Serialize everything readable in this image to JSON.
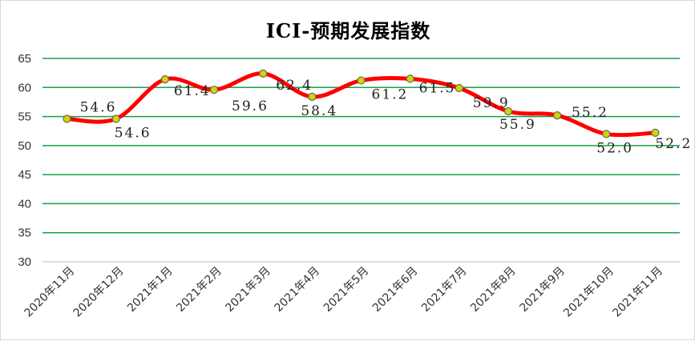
{
  "chart_data": {
    "type": "line",
    "title": "ICI-预期发展指数",
    "categories": [
      "2020年11月",
      "2020年12月",
      "2021年1月",
      "2021年2月",
      "2021年3月",
      "2021年4月",
      "2021年5月",
      "2021年6月",
      "2021年7月",
      "2021年8月",
      "2021年9月",
      "2021年10月",
      "2021年11月"
    ],
    "series": [
      {
        "values": [
          54.6,
          54.6,
          61.4,
          59.6,
          62.4,
          58.4,
          61.2,
          61.5,
          59.9,
          55.9,
          55.2,
          52.0,
          52.2
        ]
      }
    ],
    "data_labels": [
      "54.6",
      "54.6",
      "61.4",
      "59.6",
      "62.4",
      "58.4",
      "61.2",
      "61.5",
      "59.9",
      "55.9",
      "55.2",
      "52.0",
      "52.2"
    ],
    "ylim": [
      30,
      65
    ],
    "yticks": [
      "30",
      "35",
      "40",
      "45",
      "50",
      "55",
      "60",
      "65"
    ],
    "smooth": true,
    "grid": "horizontal",
    "legend": "none",
    "colors": {
      "line": "#ff0000",
      "marker_fill": "#d4d400",
      "marker_stroke": "#666666",
      "grid": "#1aa04a"
    }
  }
}
